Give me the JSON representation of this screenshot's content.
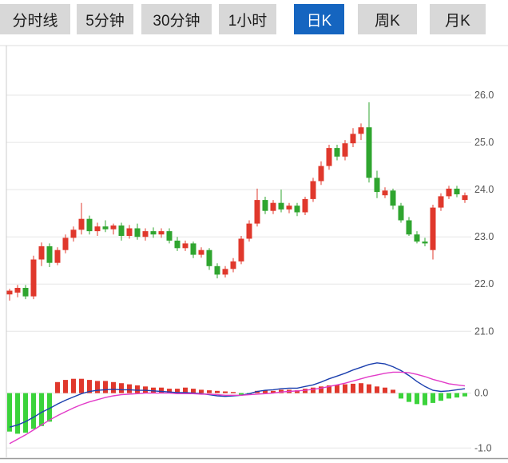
{
  "tabs": [
    {
      "label": "分时线",
      "active": false
    },
    {
      "label": "5分钟",
      "active": false
    },
    {
      "label": "30分钟",
      "active": false
    },
    {
      "label": "1小时",
      "active": false
    },
    {
      "label": "日K",
      "active": true
    },
    {
      "label": "周K",
      "active": false
    },
    {
      "label": "月K",
      "active": false
    }
  ],
  "colors": {
    "up": "#e0382c",
    "down": "#2fa52f",
    "macd_up": "#e0382c",
    "macd_down": "#3bd33b",
    "dif_line": "#1b3fae",
    "dea_line": "#e23bc8",
    "active_tab_bg": "#1565c0",
    "tab_bg": "#d8d8d8",
    "grid": "#e5e5e5",
    "axis_text": "#555555"
  },
  "chart_data": {
    "type": "candlestick",
    "title": "",
    "legend": [],
    "panels": [
      {
        "name": "price",
        "type": "candlestick",
        "yticks": [
          26.0,
          25.0,
          24.0,
          23.0,
          22.0,
          21.0
        ],
        "ylim": [
          20.7,
          27.05
        ],
        "grid": true,
        "candles_ohlc": [
          [
            21.78,
            21.9,
            21.65,
            21.86
          ],
          [
            21.82,
            21.98,
            21.72,
            21.92
          ],
          [
            21.92,
            21.98,
            21.68,
            21.74
          ],
          [
            21.74,
            22.6,
            21.68,
            22.52
          ],
          [
            22.52,
            22.88,
            22.38,
            22.8
          ],
          [
            22.8,
            22.86,
            22.36,
            22.45
          ],
          [
            22.45,
            22.78,
            22.4,
            22.72
          ],
          [
            22.72,
            23.05,
            22.65,
            22.98
          ],
          [
            22.98,
            23.22,
            22.9,
            23.15
          ],
          [
            23.15,
            23.72,
            23.05,
            23.38
          ],
          [
            23.38,
            23.45,
            23.05,
            23.12
          ],
          [
            23.12,
            23.3,
            23.02,
            23.22
          ],
          [
            23.22,
            23.35,
            23.1,
            23.16
          ],
          [
            23.16,
            23.28,
            23.05,
            23.24
          ],
          [
            23.24,
            23.3,
            22.92,
            23.02
          ],
          [
            23.02,
            23.25,
            22.96,
            23.18
          ],
          [
            23.18,
            23.28,
            22.94,
            23.0
          ],
          [
            23.0,
            23.18,
            22.92,
            23.12
          ],
          [
            23.12,
            23.2,
            22.98,
            23.05
          ],
          [
            23.05,
            23.18,
            22.98,
            23.12
          ],
          [
            23.12,
            23.18,
            22.86,
            22.92
          ],
          [
            22.92,
            23.0,
            22.7,
            22.76
          ],
          [
            22.76,
            22.92,
            22.7,
            22.86
          ],
          [
            22.86,
            22.9,
            22.55,
            22.62
          ],
          [
            22.62,
            22.78,
            22.56,
            22.72
          ],
          [
            22.72,
            22.76,
            22.3,
            22.38
          ],
          [
            22.38,
            22.44,
            22.12,
            22.2
          ],
          [
            22.2,
            22.38,
            22.14,
            22.32
          ],
          [
            22.32,
            22.55,
            22.25,
            22.48
          ],
          [
            22.48,
            23.02,
            22.42,
            22.96
          ],
          [
            22.96,
            23.35,
            22.9,
            23.28
          ],
          [
            23.28,
            24.02,
            23.22,
            23.78
          ],
          [
            23.78,
            23.85,
            23.48,
            23.55
          ],
          [
            23.55,
            23.78,
            23.48,
            23.72
          ],
          [
            23.72,
            24.0,
            23.52,
            23.58
          ],
          [
            23.58,
            23.72,
            23.5,
            23.66
          ],
          [
            23.66,
            23.72,
            23.44,
            23.52
          ],
          [
            23.52,
            23.85,
            23.46,
            23.8
          ],
          [
            23.8,
            24.25,
            23.74,
            24.18
          ],
          [
            24.18,
            24.6,
            24.1,
            24.5
          ],
          [
            24.5,
            24.95,
            24.42,
            24.88
          ],
          [
            24.88,
            24.95,
            24.62,
            24.7
          ],
          [
            24.7,
            25.05,
            24.62,
            24.98
          ],
          [
            24.98,
            25.3,
            24.9,
            25.18
          ],
          [
            25.18,
            25.4,
            25.05,
            25.32
          ],
          [
            25.32,
            25.85,
            24.15,
            24.25
          ],
          [
            24.25,
            24.4,
            23.82,
            23.95
          ],
          [
            23.88,
            24.05,
            23.82,
            23.98
          ],
          [
            23.98,
            24.02,
            23.58,
            23.66
          ],
          [
            23.66,
            23.72,
            23.3,
            23.35
          ],
          [
            23.35,
            23.42,
            23.02,
            23.05
          ],
          [
            23.05,
            23.12,
            22.86,
            22.9
          ],
          [
            22.9,
            22.98,
            22.8,
            22.86
          ],
          [
            22.72,
            23.68,
            22.52,
            23.62
          ],
          [
            23.62,
            23.92,
            23.55,
            23.86
          ],
          [
            23.86,
            24.08,
            23.8,
            24.02
          ],
          [
            24.02,
            24.08,
            23.84,
            23.9
          ],
          [
            23.78,
            23.94,
            23.72,
            23.88
          ]
        ]
      },
      {
        "name": "macd",
        "type": "bar+line",
        "yticks": [
          0.0,
          -1.0
        ],
        "ylim": [
          -1.17,
          0.75
        ],
        "grid": true,
        "histogram": [
          -0.7,
          -0.74,
          -0.72,
          -0.65,
          -0.6,
          -0.52,
          0.2,
          0.24,
          0.26,
          0.26,
          0.24,
          0.22,
          0.22,
          0.2,
          0.18,
          0.16,
          0.14,
          0.12,
          0.1,
          0.1,
          0.08,
          0.08,
          0.1,
          0.08,
          0.06,
          0.05,
          0.04,
          0.03,
          0.02,
          -0.03,
          -0.02,
          0.04,
          0.05,
          0.04,
          0.06,
          0.06,
          0.05,
          0.08,
          0.1,
          0.12,
          0.14,
          0.15,
          0.16,
          0.17,
          0.18,
          0.16,
          0.12,
          0.1,
          0.06,
          -0.1,
          -0.16,
          -0.2,
          -0.22,
          -0.18,
          -0.14,
          -0.1,
          -0.08,
          -0.06
        ],
        "series": [
          {
            "name": "DIF",
            "color_key": "dif_line",
            "values": [
              -0.62,
              -0.58,
              -0.52,
              -0.44,
              -0.35,
              -0.28,
              -0.2,
              -0.13,
              -0.07,
              -0.01,
              0.03,
              0.05,
              0.06,
              0.07,
              0.06,
              0.06,
              0.05,
              0.05,
              0.04,
              0.03,
              0.02,
              0.01,
              0.01,
              0.0,
              -0.01,
              -0.03,
              -0.05,
              -0.06,
              -0.05,
              -0.04,
              -0.01,
              0.03,
              0.05,
              0.06,
              0.08,
              0.09,
              0.09,
              0.12,
              0.15,
              0.2,
              0.26,
              0.31,
              0.36,
              0.42,
              0.47,
              0.52,
              0.55,
              0.53,
              0.48,
              0.41,
              0.32,
              0.21,
              0.12,
              0.05,
              0.03,
              0.04,
              0.06,
              0.08
            ]
          },
          {
            "name": "DEA",
            "color_key": "dea_line",
            "values": [
              -0.92,
              -0.84,
              -0.76,
              -0.67,
              -0.58,
              -0.49,
              -0.41,
              -0.34,
              -0.27,
              -0.21,
              -0.16,
              -0.12,
              -0.08,
              -0.05,
              -0.03,
              -0.02,
              -0.01,
              0.0,
              0.0,
              0.0,
              0.0,
              -0.01,
              -0.01,
              -0.01,
              -0.02,
              -0.02,
              -0.03,
              -0.04,
              -0.04,
              -0.04,
              -0.03,
              -0.02,
              -0.01,
              0.0,
              0.02,
              0.03,
              0.04,
              0.05,
              0.07,
              0.09,
              0.12,
              0.15,
              0.18,
              0.22,
              0.26,
              0.3,
              0.33,
              0.36,
              0.38,
              0.38,
              0.37,
              0.34,
              0.3,
              0.25,
              0.21,
              0.17,
              0.15,
              0.13
            ]
          }
        ]
      }
    ]
  }
}
